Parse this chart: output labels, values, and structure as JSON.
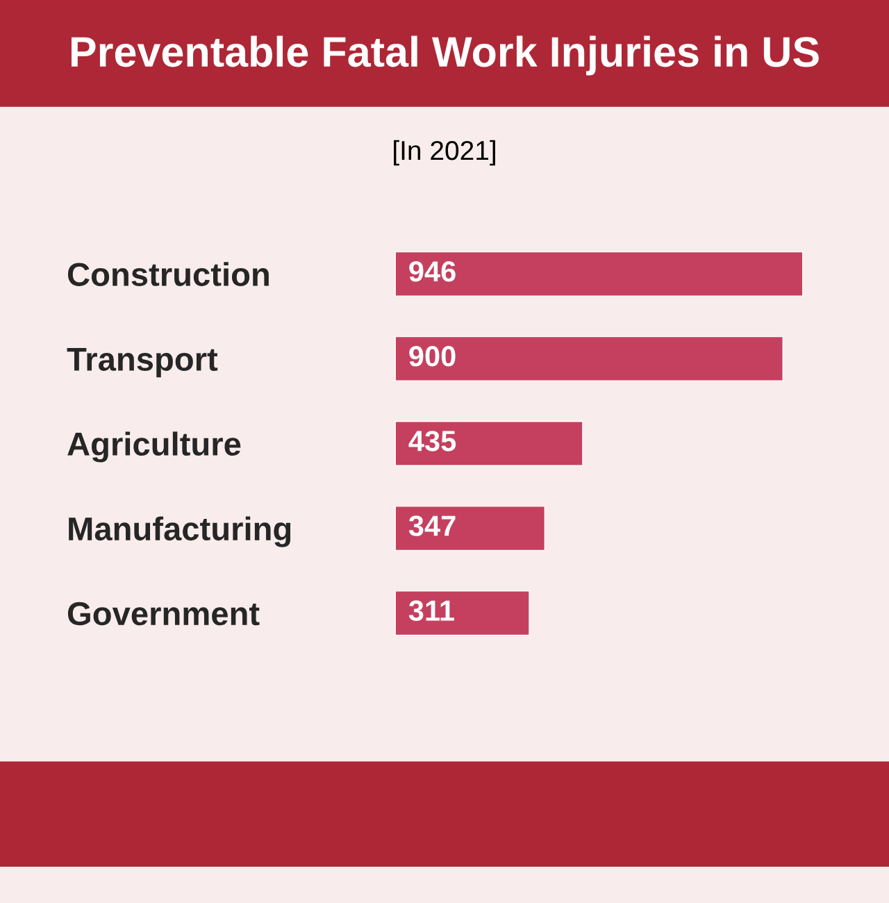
{
  "chart_data": {
    "type": "bar",
    "orientation": "horizontal",
    "title": "Preventable Fatal Work Injuries in US",
    "subtitle": "[In 2021]",
    "categories": [
      "Construction",
      "Transport",
      "Agriculture",
      "Manufacturing",
      "Government"
    ],
    "values": [
      946,
      900,
      435,
      347,
      311
    ],
    "color": "#c4405e",
    "data_labels": true,
    "grid": false,
    "legend": false,
    "tick_labels": "y"
  }
}
